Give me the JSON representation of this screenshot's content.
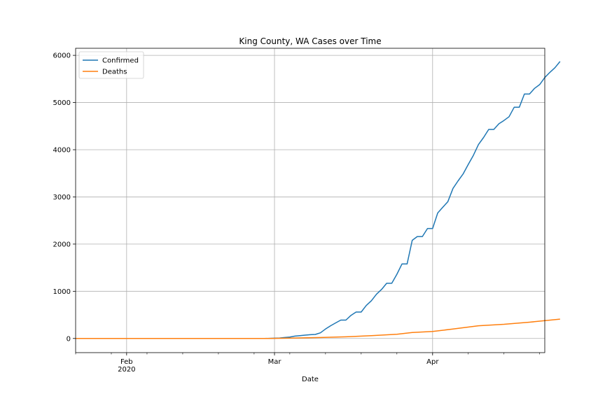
{
  "chart_data": {
    "type": "line",
    "title": "King County, WA Cases over Time",
    "xlabel": "Date",
    "ylabel": "",
    "x_range": [
      "2020-01-22",
      "2020-04-23"
    ],
    "ylim": [
      -300,
      6150
    ],
    "grid": true,
    "legend_position": "top-left",
    "x_ticks": [
      {
        "date": "2020-02-01",
        "label": "Feb",
        "sublabel": "2020"
      },
      {
        "date": "2020-03-01",
        "label": "Mar",
        "sublabel": ""
      },
      {
        "date": "2020-04-01",
        "label": "Apr",
        "sublabel": ""
      }
    ],
    "y_ticks": [
      0,
      1000,
      2000,
      3000,
      4000,
      5000,
      6000
    ],
    "series": [
      {
        "name": "Confirmed",
        "color": "#1f77b4",
        "points": [
          [
            "2020-01-22",
            0
          ],
          [
            "2020-02-28",
            0
          ],
          [
            "2020-03-01",
            5
          ],
          [
            "2020-03-02",
            10
          ],
          [
            "2020-03-03",
            20
          ],
          [
            "2020-03-04",
            30
          ],
          [
            "2020-03-05",
            50
          ],
          [
            "2020-03-06",
            60
          ],
          [
            "2020-03-07",
            70
          ],
          [
            "2020-03-08",
            80
          ],
          [
            "2020-03-09",
            85
          ],
          [
            "2020-03-10",
            120
          ],
          [
            "2020-03-11",
            200
          ],
          [
            "2020-03-12",
            270
          ],
          [
            "2020-03-13",
            330
          ],
          [
            "2020-03-14",
            390
          ],
          [
            "2020-03-15",
            390
          ],
          [
            "2020-03-16",
            490
          ],
          [
            "2020-03-17",
            560
          ],
          [
            "2020-03-18",
            560
          ],
          [
            "2020-03-19",
            700
          ],
          [
            "2020-03-20",
            800
          ],
          [
            "2020-03-21",
            940
          ],
          [
            "2020-03-22",
            1040
          ],
          [
            "2020-03-23",
            1170
          ],
          [
            "2020-03-24",
            1170
          ],
          [
            "2020-03-25",
            1360
          ],
          [
            "2020-03-26",
            1580
          ],
          [
            "2020-03-27",
            1580
          ],
          [
            "2020-03-28",
            2080
          ],
          [
            "2020-03-29",
            2160
          ],
          [
            "2020-03-30",
            2160
          ],
          [
            "2020-03-31",
            2330
          ],
          [
            "2020-04-01",
            2330
          ],
          [
            "2020-04-02",
            2660
          ],
          [
            "2020-04-03",
            2780
          ],
          [
            "2020-04-04",
            2900
          ],
          [
            "2020-04-05",
            3180
          ],
          [
            "2020-04-06",
            3340
          ],
          [
            "2020-04-07",
            3490
          ],
          [
            "2020-04-08",
            3690
          ],
          [
            "2020-04-09",
            3880
          ],
          [
            "2020-04-10",
            4110
          ],
          [
            "2020-04-11",
            4260
          ],
          [
            "2020-04-12",
            4430
          ],
          [
            "2020-04-13",
            4430
          ],
          [
            "2020-04-14",
            4550
          ],
          [
            "2020-04-15",
            4620
          ],
          [
            "2020-04-16",
            4700
          ],
          [
            "2020-04-17",
            4900
          ],
          [
            "2020-04-18",
            4900
          ],
          [
            "2020-04-19",
            5180
          ],
          [
            "2020-04-20",
            5180
          ],
          [
            "2020-04-21",
            5300
          ],
          [
            "2020-04-22",
            5380
          ],
          [
            "2020-04-23",
            5530
          ],
          [
            "2020-04-24",
            5640
          ],
          [
            "2020-04-25",
            5740
          ],
          [
            "2020-04-26",
            5870
          ]
        ]
      },
      {
        "name": "Deaths",
        "color": "#ff7f0e",
        "points": [
          [
            "2020-01-22",
            0
          ],
          [
            "2020-02-28",
            0
          ],
          [
            "2020-03-01",
            2
          ],
          [
            "2020-03-05",
            10
          ],
          [
            "2020-03-10",
            20
          ],
          [
            "2020-03-15",
            35
          ],
          [
            "2020-03-20",
            60
          ],
          [
            "2020-03-25",
            90
          ],
          [
            "2020-03-28",
            125
          ],
          [
            "2020-04-01",
            150
          ],
          [
            "2020-04-05",
            200
          ],
          [
            "2020-04-10",
            270
          ],
          [
            "2020-04-15",
            300
          ],
          [
            "2020-04-20",
            345
          ],
          [
            "2020-04-26",
            410
          ]
        ]
      }
    ]
  }
}
